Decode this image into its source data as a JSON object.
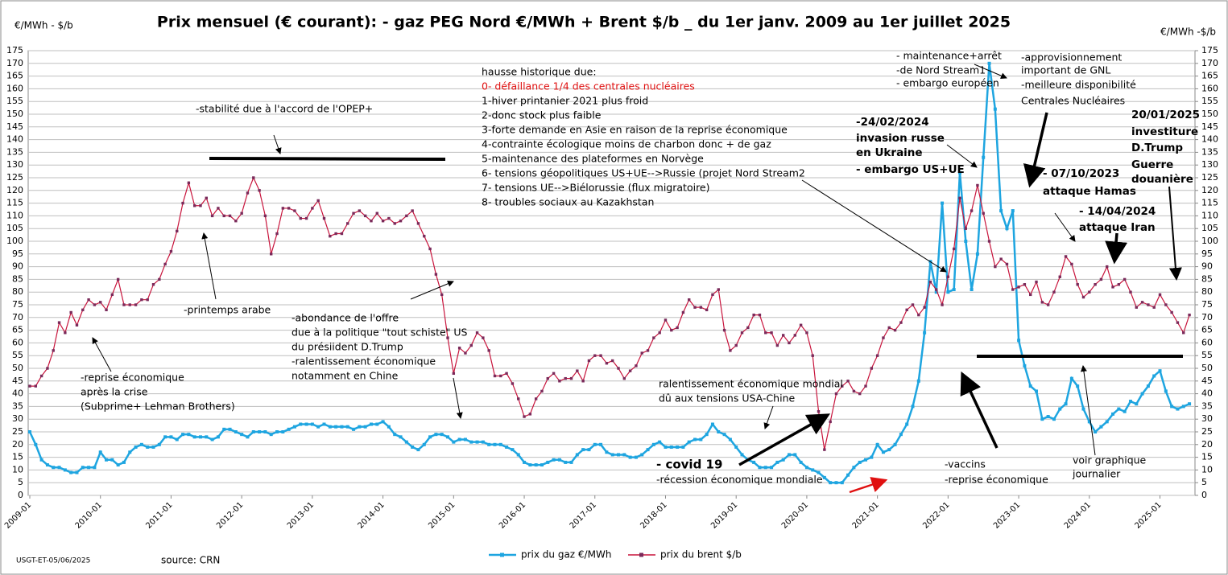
{
  "chart_data": {
    "type": "line",
    "title": "Prix mensuel (€ courant):  - gaz PEG Nord €/MWh + Brent $/b _  du 1er janv. 2009 au 1er juillet 2025",
    "y_label": "€/MWh - $/b",
    "y2_label": "€/MWh -$/b",
    "footer": "USGT-ET-05/06/2025",
    "source": "source: CRN",
    "grid": true,
    "legend": "bottom",
    "ylim": [
      0,
      175
    ],
    "yticks": [
      0,
      5,
      10,
      15,
      20,
      25,
      30,
      35,
      40,
      45,
      50,
      55,
      60,
      65,
      70,
      75,
      80,
      85,
      90,
      95,
      100,
      105,
      110,
      115,
      120,
      125,
      130,
      135,
      140,
      145,
      150,
      155,
      160,
      165,
      170,
      175
    ],
    "y2lim": [
      0,
      175
    ],
    "y2ticks": [
      0,
      5,
      10,
      15,
      20,
      25,
      30,
      35,
      40,
      45,
      50,
      55,
      60,
      65,
      70,
      75,
      80,
      85,
      90,
      95,
      100,
      105,
      110,
      115,
      120,
      125,
      130,
      135,
      140,
      145,
      150,
      155,
      160,
      165,
      170,
      175
    ],
    "categories": [
      "2009-01",
      null,
      null,
      null,
      null,
      null,
      null,
      null,
      null,
      null,
      null,
      null,
      "2010-01",
      null,
      null,
      null,
      null,
      null,
      null,
      null,
      null,
      null,
      null,
      null,
      "2011-01",
      null,
      null,
      null,
      null,
      null,
      null,
      null,
      null,
      null,
      null,
      null,
      "2012-01",
      null,
      null,
      null,
      null,
      null,
      null,
      null,
      null,
      null,
      null,
      null,
      "2013-01",
      null,
      null,
      null,
      null,
      null,
      null,
      null,
      null,
      null,
      null,
      null,
      "2014-01",
      null,
      null,
      null,
      null,
      null,
      null,
      null,
      null,
      null,
      null,
      null,
      "2015-01",
      null,
      null,
      null,
      null,
      null,
      null,
      null,
      null,
      null,
      null,
      null,
      "2016-01",
      null,
      null,
      null,
      null,
      null,
      null,
      null,
      null,
      null,
      null,
      null,
      "2017-01",
      null,
      null,
      null,
      null,
      null,
      null,
      null,
      null,
      null,
      null,
      null,
      "2018-01",
      null,
      null,
      null,
      null,
      null,
      null,
      null,
      null,
      null,
      null,
      null,
      "2019-01",
      null,
      null,
      null,
      null,
      null,
      null,
      null,
      null,
      null,
      null,
      null,
      "2020-01",
      null,
      null,
      null,
      null,
      null,
      null,
      null,
      null,
      null,
      null,
      null,
      "2021-01",
      null,
      null,
      null,
      null,
      null,
      null,
      null,
      null,
      null,
      null,
      null,
      "2022-01",
      null,
      null,
      null,
      null,
      null,
      null,
      null,
      null,
      null,
      null,
      null,
      "2023-01",
      null,
      null,
      null,
      null,
      null,
      null,
      null,
      null,
      null,
      null,
      null,
      "2024-01",
      null,
      null,
      null,
      null,
      null,
      null,
      null,
      null,
      null,
      null,
      null,
      "2025-01",
      null,
      null,
      null,
      null,
      null
    ],
    "series": [
      {
        "name": "prix du gaz €/MWh",
        "color": "#1ea5e0",
        "values": [
          25,
          20,
          14,
          12,
          11,
          11,
          10,
          9,
          9,
          11,
          11,
          11,
          17,
          14,
          14,
          12,
          13,
          17,
          19,
          20,
          19,
          19,
          20,
          23,
          23,
          22,
          24,
          24,
          23,
          23,
          23,
          22,
          23,
          26,
          26,
          25,
          24,
          23,
          25,
          25,
          25,
          24,
          25,
          25,
          26,
          27,
          28,
          28,
          28,
          27,
          28,
          27,
          27,
          27,
          27,
          26,
          27,
          27,
          28,
          28,
          29,
          27,
          24,
          23,
          21,
          19,
          18,
          20,
          23,
          24,
          24,
          23,
          21,
          22,
          22,
          21,
          21,
          21,
          20,
          20,
          20,
          19,
          18,
          16,
          13,
          12,
          12,
          12,
          13,
          14,
          14,
          13,
          13,
          16,
          18,
          18,
          20,
          20,
          17,
          16,
          16,
          16,
          15,
          15,
          16,
          18,
          20,
          21,
          19,
          19,
          19,
          19,
          21,
          22,
          22,
          24,
          28,
          25,
          24,
          22,
          19,
          16,
          14,
          13,
          11,
          11,
          11,
          13,
          14,
          16,
          16,
          13,
          11,
          10,
          9,
          7,
          5,
          5,
          5,
          8,
          11,
          13,
          14,
          15,
          20,
          17,
          18,
          20,
          24,
          28,
          35,
          45,
          64,
          92,
          80,
          115,
          80,
          81,
          127,
          100,
          81,
          95,
          133,
          170,
          152,
          112,
          105,
          112,
          61,
          51,
          43,
          41,
          30,
          31,
          30,
          34,
          36,
          46,
          43,
          34,
          29,
          25,
          27,
          29,
          32,
          34,
          33,
          37,
          36,
          40,
          43,
          47,
          49,
          41,
          35,
          34,
          35,
          36
        ]
      },
      {
        "name": "prix du brent $/b",
        "color": "#c8143c",
        "values": [
          43,
          43,
          47,
          50,
          57,
          68,
          64,
          72,
          67,
          73,
          77,
          75,
          76,
          73,
          79,
          85,
          75,
          75,
          75,
          77,
          77,
          83,
          85,
          91,
          96,
          104,
          115,
          123,
          114,
          114,
          117,
          110,
          113,
          110,
          110,
          108,
          111,
          119,
          125,
          120,
          110,
          95,
          103,
          113,
          113,
          112,
          109,
          109,
          113,
          116,
          109,
          102,
          103,
          103,
          107,
          111,
          112,
          110,
          108,
          111,
          108,
          109,
          107,
          108,
          110,
          112,
          107,
          102,
          97,
          87,
          79,
          62,
          48,
          58,
          56,
          59,
          64,
          62,
          57,
          47,
          47,
          48,
          44,
          38,
          31,
          32,
          38,
          41,
          46,
          48,
          45,
          46,
          46,
          49,
          45,
          53,
          55,
          55,
          52,
          53,
          50,
          46,
          49,
          51,
          56,
          57,
          62,
          64,
          69,
          65,
          66,
          72,
          77,
          74,
          74,
          73,
          79,
          81,
          65,
          57,
          59,
          64,
          66,
          71,
          71,
          64,
          64,
          59,
          63,
          60,
          63,
          67,
          64,
          55,
          33,
          18,
          29,
          40,
          43,
          45,
          41,
          40,
          43,
          50,
          55,
          62,
          66,
          65,
          68,
          73,
          75,
          71,
          74,
          84,
          81,
          75,
          86,
          97,
          117,
          105,
          112,
          122,
          111,
          100,
          90,
          93,
          91,
          81,
          82,
          83,
          79,
          84,
          76,
          75,
          80,
          86,
          94,
          91,
          83,
          78,
          80,
          83,
          85,
          90,
          82,
          83,
          85,
          80,
          74,
          76,
          75,
          74,
          79,
          75,
          72,
          68,
          64,
          71
        ]
      }
    ],
    "annotations": [
      "hausse historique due:",
      "0- défaillance 1/4 des centrales nucléaires",
      "1-hiver printanier 2021  plus froid",
      "2-donc  stock plus faible",
      "3-forte demande en Asie en raison de la reprise économique",
      "4-contrainte écologique moins de charbon donc + de gaz",
      "5-maintenance des plateformes en Norvège",
      "6- tensions géopolitiques US+UE-->Russie (projet Nord Stream2",
      "7- tensions UE-->Biélorussie (flux migratoire)",
      "8- troubles sociaux au Kazakhstan",
      "-stabilité due à l'accord de l'OPEP+",
      "-printemps arabe",
      "-reprise économique",
      "après la crise",
      "(Subprime+ Lehman Brothers)",
      "-abondance de l'offre",
      "due à la politique \"tout schiste\" US",
      "du présiident  D.Trump",
      "-ralentissement économique",
      "notamment en Chine",
      "ralentissement économique mondial",
      "dû aux tensions USA-Chine",
      "- covid 19",
      "-récession économique mondiale",
      "- maintenance+arrêt",
      "-de Nord Stream1",
      "- embargo  européen",
      "-approvisionnement",
      "important de GNL",
      "-meilleure disponibilité",
      "Centrales Nucléaires",
      "-24/02/2024",
      "invasion russe",
      " en Ukraine",
      "- embargo US+UE",
      "- 07/10/2023",
      "attaque Hamas",
      "- 14/04/2024",
      "attaque Iran",
      "20/01/2025",
      "investiture",
      "D.Trump",
      "Guerre",
      "douanière",
      "-vaccins",
      "-reprise économique",
      "voir graphique",
      "journalier"
    ]
  }
}
